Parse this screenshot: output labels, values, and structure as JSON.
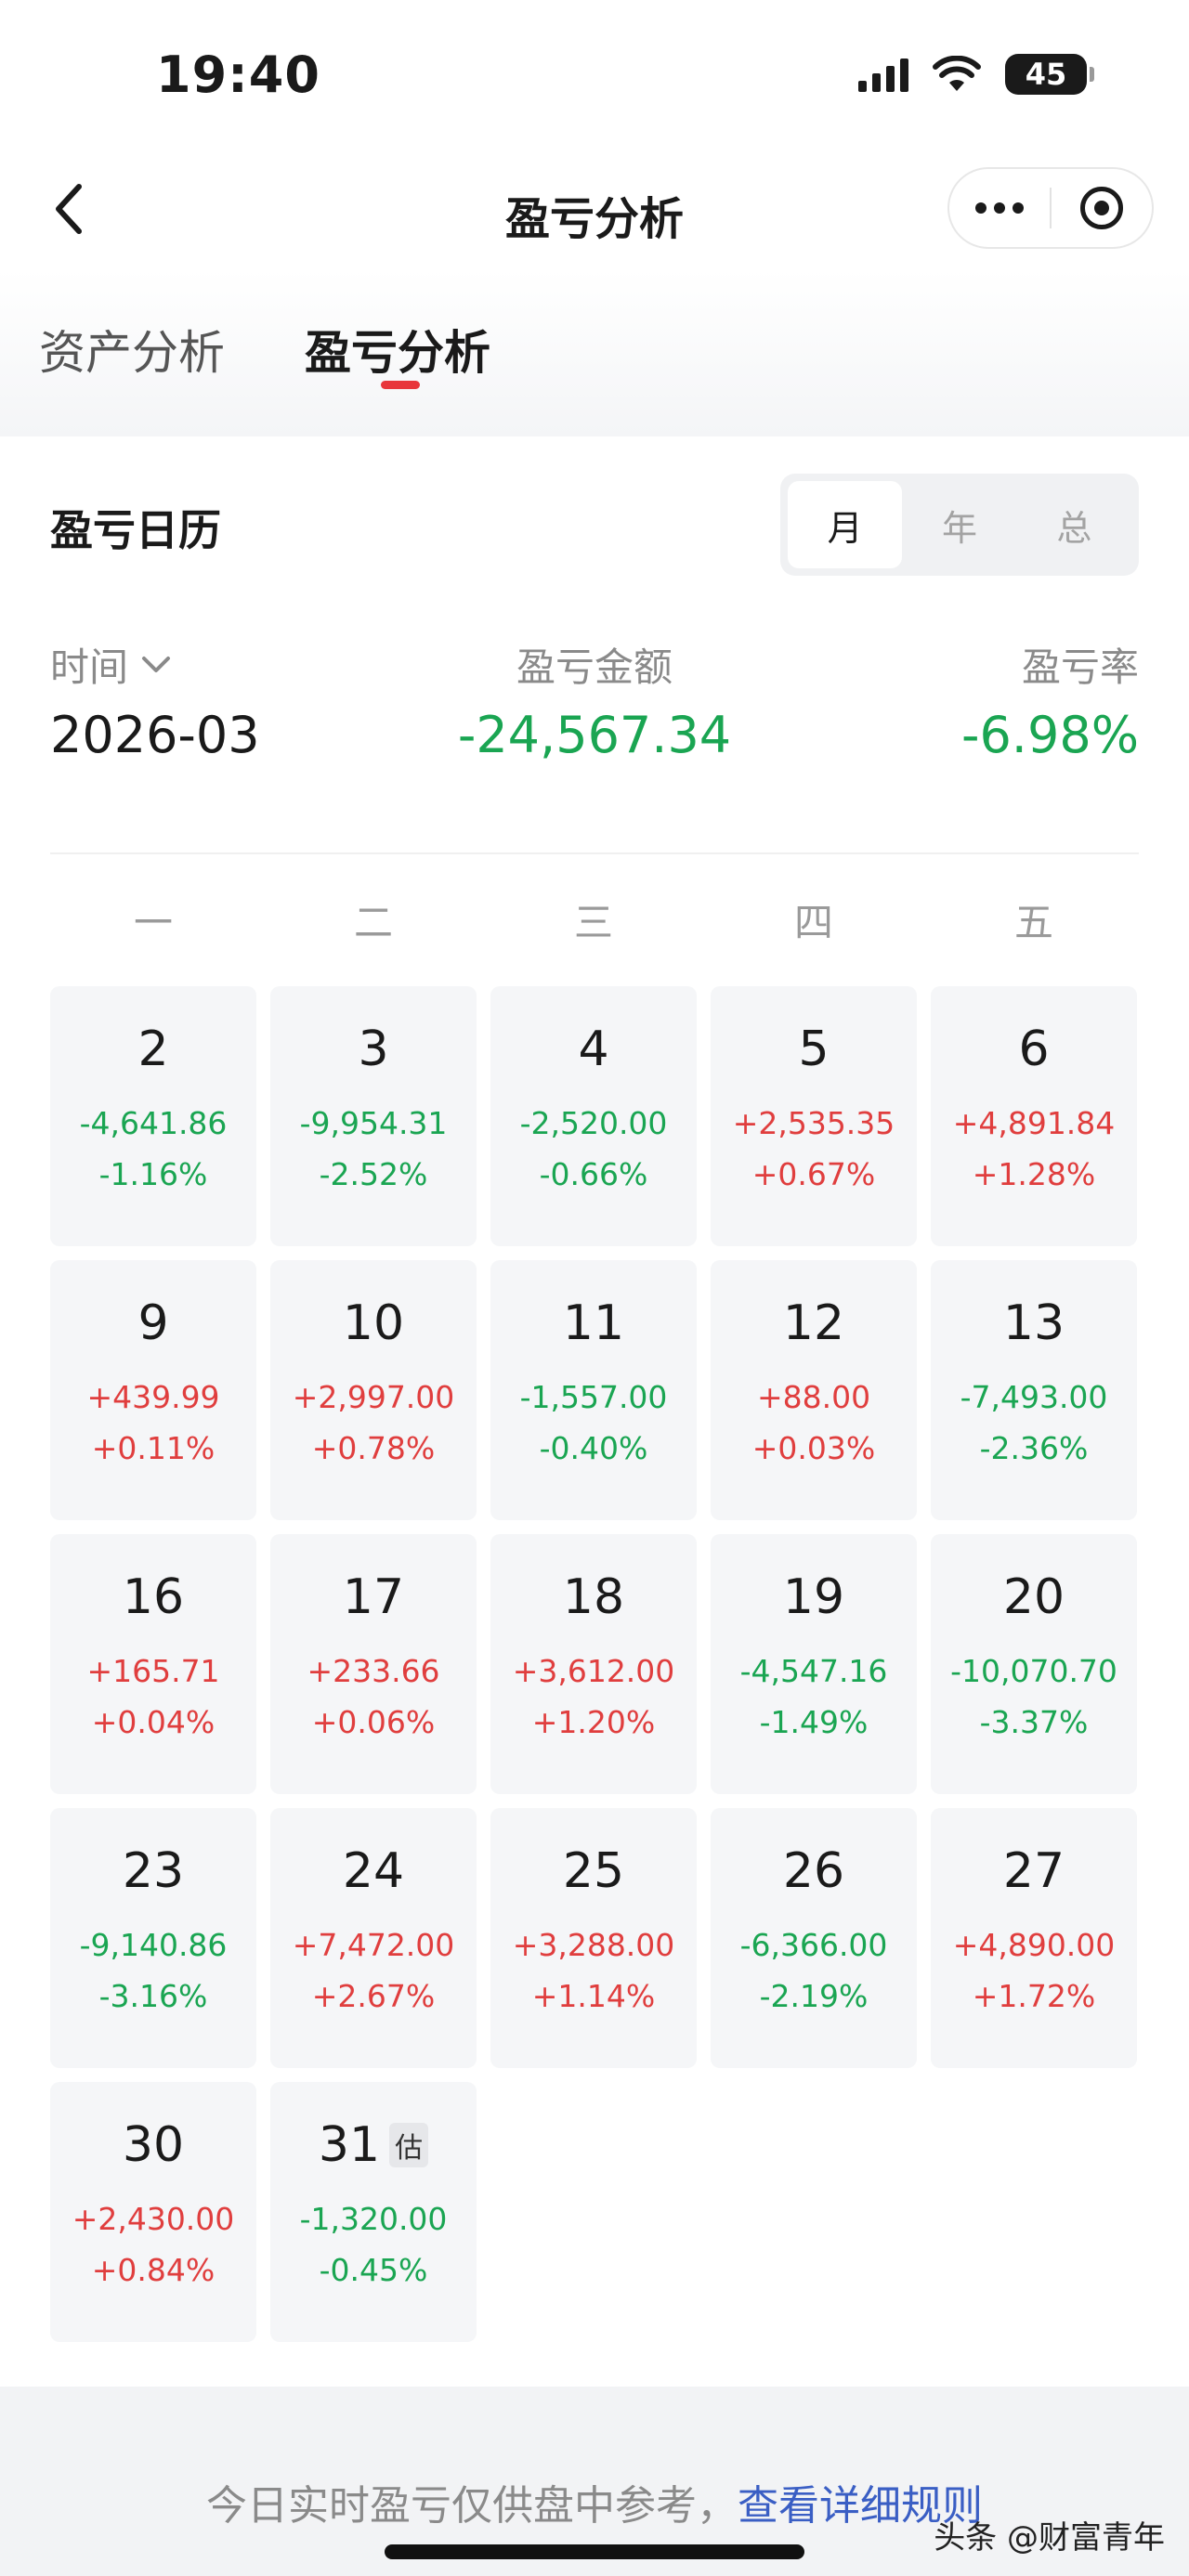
{
  "status_bar": {
    "time": "19:40",
    "battery": "45"
  },
  "nav": {
    "title": "盈亏分析"
  },
  "tabs": [
    {
      "label": "资产分析"
    },
    {
      "label": "盈亏分析"
    }
  ],
  "calendar": {
    "title": "盈亏日历",
    "segments": [
      {
        "label": "月"
      },
      {
        "label": "年"
      },
      {
        "label": "总"
      }
    ],
    "summary": {
      "time_label": "时间",
      "amount_label": "盈亏金额",
      "rate_label": "盈亏率",
      "month": "2026-03",
      "amount": "-24,567.34",
      "rate": "-6.98%"
    },
    "weekdays": [
      "一",
      "二",
      "三",
      "四",
      "五"
    ],
    "days": [
      {
        "day": "2",
        "amount": "-4,641.86",
        "pct": "-1.16%",
        "dir": "down"
      },
      {
        "day": "3",
        "amount": "-9,954.31",
        "pct": "-2.52%",
        "dir": "down"
      },
      {
        "day": "4",
        "amount": "-2,520.00",
        "pct": "-0.66%",
        "dir": "down"
      },
      {
        "day": "5",
        "amount": "+2,535.35",
        "pct": "+0.67%",
        "dir": "up"
      },
      {
        "day": "6",
        "amount": "+4,891.84",
        "pct": "+1.28%",
        "dir": "up"
      },
      {
        "day": "9",
        "amount": "+439.99",
        "pct": "+0.11%",
        "dir": "up"
      },
      {
        "day": "10",
        "amount": "+2,997.00",
        "pct": "+0.78%",
        "dir": "up"
      },
      {
        "day": "11",
        "amount": "-1,557.00",
        "pct": "-0.40%",
        "dir": "down"
      },
      {
        "day": "12",
        "amount": "+88.00",
        "pct": "+0.03%",
        "dir": "up"
      },
      {
        "day": "13",
        "amount": "-7,493.00",
        "pct": "-2.36%",
        "dir": "down"
      },
      {
        "day": "16",
        "amount": "+165.71",
        "pct": "+0.04%",
        "dir": "up"
      },
      {
        "day": "17",
        "amount": "+233.66",
        "pct": "+0.06%",
        "dir": "up"
      },
      {
        "day": "18",
        "amount": "+3,612.00",
        "pct": "+1.20%",
        "dir": "up"
      },
      {
        "day": "19",
        "amount": "-4,547.16",
        "pct": "-1.49%",
        "dir": "down"
      },
      {
        "day": "20",
        "amount": "-10,070.70",
        "pct": "-3.37%",
        "dir": "down"
      },
      {
        "day": "23",
        "amount": "-9,140.86",
        "pct": "-3.16%",
        "dir": "down"
      },
      {
        "day": "24",
        "amount": "+7,472.00",
        "pct": "+2.67%",
        "dir": "up"
      },
      {
        "day": "25",
        "amount": "+3,288.00",
        "pct": "+1.14%",
        "dir": "up"
      },
      {
        "day": "26",
        "amount": "-6,366.00",
        "pct": "-2.19%",
        "dir": "down"
      },
      {
        "day": "27",
        "amount": "+4,890.00",
        "pct": "+1.72%",
        "dir": "up"
      },
      {
        "day": "30",
        "amount": "+2,430.00",
        "pct": "+0.84%",
        "dir": "up"
      },
      {
        "day": "31",
        "amount": "-1,320.00",
        "pct": "-0.45%",
        "dir": "down",
        "badge": "估"
      }
    ]
  },
  "footer": {
    "note": "今日实时盈亏仅供盘中参考，",
    "link": "查看详细规则"
  },
  "watermark": "头条 @财富青年",
  "colors": {
    "up": "#e03e3e",
    "down": "#1aa552",
    "accent": "#e8363b",
    "link": "#3a5ec4"
  }
}
